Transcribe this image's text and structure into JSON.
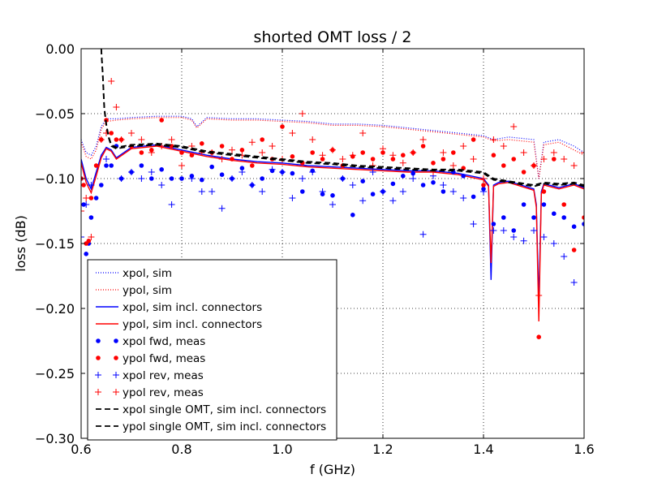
{
  "chart_data": {
    "type": "line",
    "title": "shorted OMT loss / 2",
    "xlabel": "f (GHz)",
    "ylabel": "loss (dB)",
    "xlim": [
      0.6,
      1.6
    ],
    "ylim": [
      -0.3,
      0.0
    ],
    "x_ticks": [
      0.6,
      0.8,
      1.0,
      1.2,
      1.4,
      1.6
    ],
    "x_tick_labels": [
      "0.6",
      "0.8",
      "1.0",
      "1.2",
      "1.4",
      "1.6"
    ],
    "y_ticks": [
      0.0,
      -0.05,
      -0.1,
      -0.15,
      -0.2,
      -0.25,
      -0.3
    ],
    "y_tick_labels": [
      "0.00",
      "−0.05",
      "−0.10",
      "−0.15",
      "−0.20",
      "−0.25",
      "−0.30"
    ],
    "grid": true,
    "legend_position": "lower-left",
    "series": [
      {
        "name": "xpol, sim",
        "color": "#0000ff",
        "style": "dotted",
        "x": [
          0.6,
          0.61,
          0.62,
          0.63,
          0.64,
          0.65,
          0.67,
          0.7,
          0.75,
          0.8,
          0.82,
          0.83,
          0.85,
          0.9,
          0.95,
          1.0,
          1.05,
          1.1,
          1.15,
          1.2,
          1.25,
          1.3,
          1.35,
          1.4,
          1.42,
          1.45,
          1.5,
          1.51,
          1.52,
          1.55,
          1.58,
          1.6
        ],
        "y": [
          -0.07,
          -0.08,
          -0.082,
          -0.075,
          -0.06,
          -0.054,
          -0.054,
          -0.053,
          -0.052,
          -0.052,
          -0.054,
          -0.06,
          -0.053,
          -0.054,
          -0.054,
          -0.055,
          -0.056,
          -0.058,
          -0.058,
          -0.059,
          -0.061,
          -0.063,
          -0.065,
          -0.067,
          -0.07,
          -0.068,
          -0.07,
          -0.1,
          -0.072,
          -0.07,
          -0.075,
          -0.08
        ]
      },
      {
        "name": "ypol, sim",
        "color": "#ff0000",
        "style": "dotted",
        "x": [
          0.6,
          0.61,
          0.62,
          0.63,
          0.64,
          0.65,
          0.67,
          0.7,
          0.75,
          0.8,
          0.82,
          0.83,
          0.85,
          0.9,
          0.95,
          1.0,
          1.05,
          1.1,
          1.15,
          1.2,
          1.25,
          1.3,
          1.35,
          1.4,
          1.42,
          1.45,
          1.5,
          1.51,
          1.52,
          1.55,
          1.58,
          1.6
        ],
        "y": [
          -0.072,
          -0.083,
          -0.085,
          -0.078,
          -0.062,
          -0.056,
          -0.055,
          -0.054,
          -0.053,
          -0.053,
          -0.055,
          -0.061,
          -0.054,
          -0.055,
          -0.055,
          -0.056,
          -0.057,
          -0.059,
          -0.059,
          -0.06,
          -0.062,
          -0.064,
          -0.066,
          -0.068,
          -0.071,
          -0.07,
          -0.072,
          -0.1,
          -0.074,
          -0.072,
          -0.078,
          -0.082
        ]
      },
      {
        "name": "xpol, sim incl. connectors",
        "color": "#0000ff",
        "style": "solid",
        "x": [
          0.6,
          0.61,
          0.62,
          0.63,
          0.64,
          0.65,
          0.66,
          0.67,
          0.7,
          0.75,
          0.8,
          0.85,
          0.9,
          0.95,
          1.0,
          1.05,
          1.1,
          1.15,
          1.2,
          1.25,
          1.3,
          1.35,
          1.4,
          1.41,
          1.415,
          1.42,
          1.43,
          1.45,
          1.5,
          1.505,
          1.51,
          1.515,
          1.52,
          1.55,
          1.58,
          1.6
        ],
        "y": [
          -0.085,
          -0.1,
          -0.108,
          -0.095,
          -0.082,
          -0.076,
          -0.078,
          -0.084,
          -0.076,
          -0.074,
          -0.078,
          -0.082,
          -0.085,
          -0.087,
          -0.088,
          -0.09,
          -0.091,
          -0.092,
          -0.093,
          -0.094,
          -0.094,
          -0.096,
          -0.1,
          -0.105,
          -0.178,
          -0.105,
          -0.103,
          -0.102,
          -0.108,
          -0.12,
          -0.195,
          -0.11,
          -0.104,
          -0.107,
          -0.104,
          -0.107
        ]
      },
      {
        "name": "ypol, sim incl. connectors",
        "color": "#ff0000",
        "style": "solid",
        "x": [
          0.6,
          0.61,
          0.62,
          0.63,
          0.64,
          0.65,
          0.66,
          0.67,
          0.7,
          0.75,
          0.8,
          0.85,
          0.9,
          0.95,
          1.0,
          1.05,
          1.1,
          1.15,
          1.2,
          1.25,
          1.3,
          1.35,
          1.4,
          1.41,
          1.415,
          1.42,
          1.43,
          1.45,
          1.5,
          1.505,
          1.51,
          1.515,
          1.52,
          1.55,
          1.58,
          1.6
        ],
        "y": [
          -0.088,
          -0.103,
          -0.111,
          -0.098,
          -0.084,
          -0.077,
          -0.079,
          -0.085,
          -0.077,
          -0.075,
          -0.079,
          -0.083,
          -0.086,
          -0.088,
          -0.089,
          -0.091,
          -0.092,
          -0.093,
          -0.094,
          -0.095,
          -0.095,
          -0.097,
          -0.101,
          -0.106,
          -0.165,
          -0.106,
          -0.104,
          -0.103,
          -0.109,
          -0.122,
          -0.21,
          -0.112,
          -0.105,
          -0.108,
          -0.105,
          -0.108
        ]
      },
      {
        "name": "xpol fwd, meas",
        "color": "#0000ff",
        "style": "dot-marker",
        "x": [
          0.6,
          0.605,
          0.61,
          0.615,
          0.62,
          0.63,
          0.64,
          0.65,
          0.66,
          0.67,
          0.68,
          0.7,
          0.72,
          0.74,
          0.76,
          0.78,
          0.8,
          0.82,
          0.84,
          0.86,
          0.88,
          0.9,
          0.92,
          0.94,
          0.96,
          0.98,
          1.0,
          1.02,
          1.04,
          1.06,
          1.08,
          1.1,
          1.12,
          1.14,
          1.16,
          1.18,
          1.2,
          1.22,
          1.24,
          1.26,
          1.28,
          1.3,
          1.32,
          1.34,
          1.36,
          1.38,
          1.4,
          1.42,
          1.44,
          1.46,
          1.48,
          1.5,
          1.52,
          1.54,
          1.56,
          1.58,
          1.6
        ],
        "y": [
          -0.1,
          -0.12,
          -0.158,
          -0.15,
          -0.13,
          -0.115,
          -0.105,
          -0.09,
          -0.09,
          -0.075,
          -0.1,
          -0.095,
          -0.09,
          -0.1,
          -0.093,
          -0.1,
          -0.1,
          -0.098,
          -0.101,
          -0.091,
          -0.097,
          -0.1,
          -0.092,
          -0.105,
          -0.1,
          -0.094,
          -0.095,
          -0.096,
          -0.11,
          -0.094,
          -0.112,
          -0.113,
          -0.1,
          -0.128,
          -0.102,
          -0.112,
          -0.11,
          -0.104,
          -0.098,
          -0.096,
          -0.105,
          -0.103,
          -0.11,
          -0.095,
          -0.098,
          -0.114,
          -0.108,
          -0.135,
          -0.13,
          -0.14,
          -0.12,
          -0.13,
          -0.12,
          -0.127,
          -0.13,
          -0.137,
          -0.135
        ]
      },
      {
        "name": "ypol fwd, meas",
        "color": "#ff0000",
        "style": "dot-marker",
        "x": [
          0.6,
          0.605,
          0.61,
          0.615,
          0.62,
          0.63,
          0.64,
          0.65,
          0.66,
          0.67,
          0.68,
          0.7,
          0.72,
          0.74,
          0.76,
          0.78,
          0.8,
          0.82,
          0.84,
          0.86,
          0.88,
          0.9,
          0.92,
          0.94,
          0.96,
          0.98,
          1.0,
          1.02,
          1.04,
          1.06,
          1.08,
          1.1,
          1.12,
          1.14,
          1.16,
          1.18,
          1.2,
          1.22,
          1.24,
          1.26,
          1.28,
          1.3,
          1.32,
          1.34,
          1.36,
          1.38,
          1.4,
          1.42,
          1.44,
          1.46,
          1.48,
          1.5,
          1.51,
          1.52,
          1.54,
          1.56,
          1.58,
          1.6
        ],
        "y": [
          -0.1,
          -0.105,
          -0.15,
          -0.148,
          -0.115,
          -0.09,
          -0.07,
          -0.055,
          -0.065,
          -0.07,
          -0.07,
          -0.075,
          -0.08,
          -0.078,
          -0.055,
          -0.075,
          -0.08,
          -0.082,
          -0.073,
          -0.08,
          -0.075,
          -0.085,
          -0.078,
          -0.09,
          -0.07,
          -0.085,
          -0.06,
          -0.083,
          -0.088,
          -0.08,
          -0.085,
          -0.078,
          -0.09,
          -0.083,
          -0.08,
          -0.085,
          -0.08,
          -0.085,
          -0.082,
          -0.08,
          -0.075,
          -0.088,
          -0.085,
          -0.08,
          -0.092,
          -0.07,
          -0.105,
          -0.082,
          -0.09,
          -0.085,
          -0.095,
          -0.09,
          -0.222,
          -0.11,
          -0.085,
          -0.12,
          -0.155,
          -0.13
        ]
      },
      {
        "name": "xpol rev, meas",
        "color": "#0000ff",
        "style": "plus-marker",
        "x": [
          0.6,
          0.61,
          0.62,
          0.65,
          0.68,
          0.7,
          0.72,
          0.74,
          0.76,
          0.78,
          0.8,
          0.82,
          0.84,
          0.86,
          0.88,
          0.9,
          0.92,
          0.94,
          0.96,
          0.98,
          1.0,
          1.02,
          1.04,
          1.06,
          1.08,
          1.1,
          1.12,
          1.14,
          1.16,
          1.18,
          1.2,
          1.22,
          1.24,
          1.26,
          1.28,
          1.3,
          1.32,
          1.34,
          1.36,
          1.38,
          1.4,
          1.42,
          1.44,
          1.46,
          1.48,
          1.5,
          1.52,
          1.54,
          1.56,
          1.58,
          1.6
        ],
        "y": [
          -0.145,
          -0.12,
          -0.105,
          -0.085,
          -0.1,
          -0.095,
          -0.1,
          -0.095,
          -0.105,
          -0.12,
          -0.09,
          -0.1,
          -0.11,
          -0.11,
          -0.123,
          -0.1,
          -0.095,
          -0.105,
          -0.11,
          -0.093,
          -0.095,
          -0.115,
          -0.1,
          -0.095,
          -0.11,
          -0.12,
          -0.1,
          -0.105,
          -0.117,
          -0.095,
          -0.11,
          -0.117,
          -0.11,
          -0.1,
          -0.143,
          -0.098,
          -0.105,
          -0.11,
          -0.115,
          -0.135,
          -0.11,
          -0.14,
          -0.14,
          -0.145,
          -0.148,
          -0.14,
          -0.145,
          -0.15,
          -0.16,
          -0.18,
          -0.15
        ]
      },
      {
        "name": "ypol rev, meas",
        "color": "#ff0000",
        "style": "plus-marker",
        "x": [
          0.6,
          0.61,
          0.62,
          0.64,
          0.65,
          0.66,
          0.67,
          0.68,
          0.7,
          0.72,
          0.74,
          0.76,
          0.78,
          0.8,
          0.82,
          0.84,
          0.86,
          0.88,
          0.9,
          0.92,
          0.94,
          0.96,
          0.98,
          1.0,
          1.02,
          1.04,
          1.06,
          1.08,
          1.1,
          1.12,
          1.14,
          1.16,
          1.18,
          1.2,
          1.22,
          1.24,
          1.26,
          1.28,
          1.3,
          1.32,
          1.34,
          1.36,
          1.38,
          1.4,
          1.42,
          1.44,
          1.46,
          1.48,
          1.5,
          1.51,
          1.52,
          1.54,
          1.56,
          1.58,
          1.6
        ],
        "y": [
          -0.125,
          -0.115,
          -0.145,
          -0.07,
          -0.065,
          -0.025,
          -0.045,
          -0.07,
          -0.065,
          -0.07,
          -0.08,
          -0.075,
          -0.07,
          -0.09,
          -0.075,
          -0.08,
          -0.08,
          -0.085,
          -0.078,
          -0.082,
          -0.072,
          -0.08,
          -0.075,
          -0.085,
          -0.065,
          -0.05,
          -0.07,
          -0.082,
          -0.078,
          -0.085,
          -0.082,
          -0.065,
          -0.09,
          -0.077,
          -0.082,
          -0.088,
          -0.08,
          -0.07,
          -0.095,
          -0.08,
          -0.09,
          -0.075,
          -0.085,
          -0.1,
          -0.07,
          -0.075,
          -0.06,
          -0.08,
          -0.09,
          -0.19,
          -0.085,
          -0.08,
          -0.085,
          -0.09,
          -0.08
        ]
      },
      {
        "name": "xpol single OMT, sim incl. connectors",
        "color": "#000000",
        "style": "dashed",
        "x": [
          0.64,
          0.643,
          0.646,
          0.65,
          0.655,
          0.66,
          0.67,
          0.7,
          0.75,
          0.8,
          0.85,
          0.9,
          0.95,
          1.0,
          1.05,
          1.1,
          1.15,
          1.2,
          1.25,
          1.3,
          1.35,
          1.4,
          1.42,
          1.45,
          1.5,
          1.52,
          1.55,
          1.58,
          1.6
        ],
        "y": [
          0.0,
          -0.02,
          -0.045,
          -0.058,
          -0.068,
          -0.074,
          -0.076,
          -0.074,
          -0.073,
          -0.075,
          -0.079,
          -0.081,
          -0.083,
          -0.085,
          -0.087,
          -0.088,
          -0.09,
          -0.091,
          -0.092,
          -0.093,
          -0.093,
          -0.095,
          -0.1,
          -0.102,
          -0.105,
          -0.103,
          -0.104,
          -0.103,
          -0.105
        ]
      },
      {
        "name": "ypol single OMT, sim incl. connectors",
        "color": "#000000",
        "style": "dashed",
        "x": [
          0.64,
          0.643,
          0.646,
          0.65,
          0.655,
          0.66,
          0.67,
          0.7,
          0.75,
          0.8,
          0.85,
          0.9,
          0.95,
          1.0,
          1.05,
          1.1,
          1.15,
          1.2,
          1.25,
          1.3,
          1.35,
          1.4,
          1.42,
          1.45,
          1.5,
          1.52,
          1.55,
          1.58,
          1.6
        ],
        "y": [
          0.0,
          -0.021,
          -0.046,
          -0.059,
          -0.069,
          -0.075,
          -0.077,
          -0.075,
          -0.074,
          -0.076,
          -0.08,
          -0.082,
          -0.084,
          -0.086,
          -0.088,
          -0.089,
          -0.091,
          -0.092,
          -0.093,
          -0.094,
          -0.094,
          -0.096,
          -0.101,
          -0.103,
          -0.106,
          -0.104,
          -0.105,
          -0.104,
          -0.106
        ]
      }
    ]
  }
}
